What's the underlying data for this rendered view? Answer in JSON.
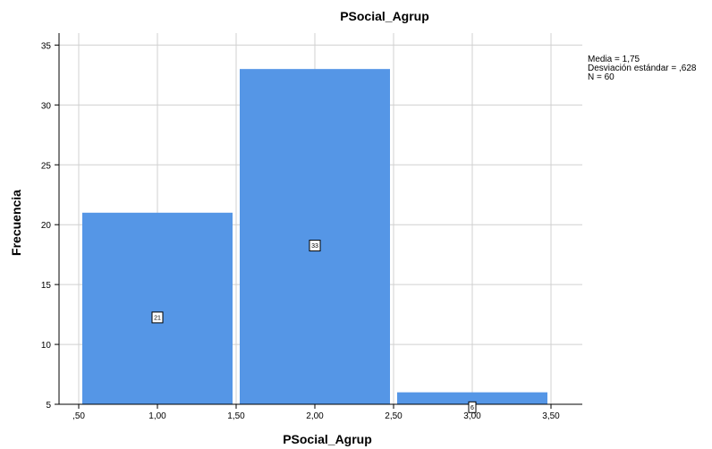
{
  "chart_data": {
    "type": "bar",
    "title": "PSocial_Agrup",
    "xlabel": "PSocial_Agrup",
    "ylabel": "Frecuencia",
    "xlim": [
      0.5,
      3.5
    ],
    "ylim": [
      5,
      36
    ],
    "x_tick_values": [
      0.5,
      1.0,
      1.5,
      2.0,
      2.5,
      3.0,
      3.5
    ],
    "x_tick_labels": [
      ",50",
      "1,00",
      "1,50",
      "2,00",
      "2,50",
      "3,00",
      "3,50"
    ],
    "y_tick_values": [
      5,
      10,
      15,
      20,
      25,
      30,
      35
    ],
    "y_tick_labels": [
      "5",
      "10",
      "15",
      "20",
      "25",
      "30",
      "35"
    ],
    "bins": [
      {
        "x_start": 0.5,
        "x_end": 1.5,
        "value": 21,
        "label": "21"
      },
      {
        "x_start": 1.5,
        "x_end": 2.5,
        "value": 33,
        "label": "33"
      },
      {
        "x_start": 2.5,
        "x_end": 3.5,
        "value": 6,
        "label": "6"
      }
    ],
    "grid": true,
    "bar_color": "#5596e6",
    "stats": {
      "mean": "Media = 1,75",
      "std": "Desviación estándar = ,628",
      "n": "N = 60"
    },
    "stats_placement": "top-right"
  }
}
